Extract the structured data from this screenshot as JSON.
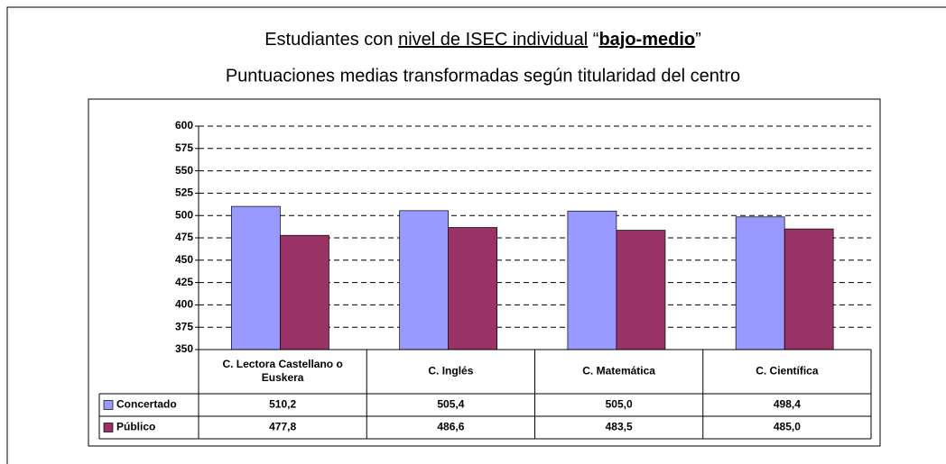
{
  "chart_data": {
    "type": "bar",
    "title": [
      {
        "text": "Estudiantes con "
      },
      {
        "text": "nivel de ISEC individual",
        "underline": true
      },
      {
        "text": " “"
      },
      {
        "text": "bajo-medio",
        "bold": true,
        "underline": true
      },
      {
        "text": "”"
      }
    ],
    "subtitle": "Puntuaciones medias transformadas según titularidad del centro",
    "categories": [
      [
        "C. Lectora Castellano o",
        "Euskera"
      ],
      [
        "C. Inglés"
      ],
      [
        "C. Matemática"
      ],
      [
        "C. Científica"
      ]
    ],
    "series": [
      {
        "name": "Concertado",
        "color": "#9999ff",
        "values": [
          510.2,
          505.4,
          505.0,
          498.4
        ],
        "value_labels": [
          "510,2",
          "505,4",
          "505,0",
          "498,4"
        ]
      },
      {
        "name": "Público",
        "color": "#993366",
        "values": [
          477.8,
          486.6,
          483.5,
          485.0
        ],
        "value_labels": [
          "477,8",
          "486,6",
          "483,5",
          "485,0"
        ]
      }
    ],
    "ylim": [
      350,
      600
    ],
    "yticks": [
      350,
      375,
      400,
      425,
      450,
      475,
      500,
      525,
      550,
      575,
      600
    ],
    "grid": true
  }
}
